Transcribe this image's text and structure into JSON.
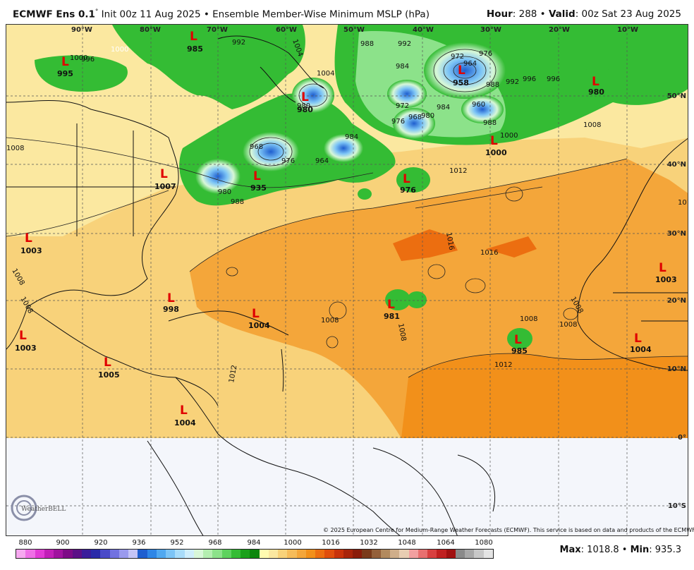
{
  "header": {
    "model": "ECMWF Ens 0.1",
    "degree": "°",
    "init": "Init 00z 11 Aug 2025",
    "bullet": "•",
    "product": "Ensemble Member-Wise Minimum MSLP (hPa)",
    "hour_label": "Hour",
    "hour_value": ": 288",
    "valid_label": "Valid",
    "valid_value": ": 00z Sat 23 Aug 2025"
  },
  "map": {
    "longitudes": [
      "90°W",
      "80°W",
      "70°W",
      "60°W",
      "50°W",
      "40°W",
      "30°W",
      "20°W",
      "10°W"
    ],
    "latitudes": [
      "50°N",
      "40°N",
      "30°N",
      "20°N",
      "10°N",
      "0°",
      "10°S"
    ],
    "lows": [
      {
        "symbol": "L",
        "value": "995"
      },
      {
        "symbol": "L",
        "value": "985"
      },
      {
        "symbol": "L",
        "value": "958"
      },
      {
        "symbol": "L",
        "value": "980"
      },
      {
        "symbol": "L",
        "value": "980"
      },
      {
        "symbol": "L",
        "value": "1000"
      },
      {
        "symbol": "L",
        "value": "1007"
      },
      {
        "symbol": "L",
        "value": "935"
      },
      {
        "symbol": "L",
        "value": "976"
      },
      {
        "symbol": "L",
        "value": "1003"
      },
      {
        "symbol": "L",
        "value": "1003"
      },
      {
        "symbol": "L",
        "value": "998"
      },
      {
        "symbol": "L",
        "value": "1004"
      },
      {
        "symbol": "L",
        "value": "981"
      },
      {
        "symbol": "L",
        "value": "985"
      },
      {
        "symbol": "L",
        "value": "1004"
      },
      {
        "symbol": "L",
        "value": "1003"
      },
      {
        "symbol": "L",
        "value": "1005"
      },
      {
        "symbol": "L",
        "value": "1004"
      }
    ],
    "isobar_labels": [
      "996",
      "1000",
      "992",
      "1004",
      "988",
      "992",
      "996",
      "1000",
      "1008",
      "1012",
      "1016",
      "1016",
      "1008",
      "1012",
      "1008",
      "1008",
      "1008",
      "1008",
      "972",
      "964",
      "976",
      "984",
      "988",
      "992",
      "996",
      "972",
      "960",
      "968",
      "976",
      "984",
      "988",
      "980",
      "1000",
      "1004",
      "1012",
      "968",
      "976",
      "984",
      "964",
      "980",
      "988",
      "980",
      "1008",
      "1008",
      "1008",
      "1012"
    ],
    "credit": "© 2025 European Centre for Medium-Range Weather Forecasts (ECMWF). This service is based on data and products of the ECMWF.",
    "logo_text": "WeatherBELL"
  },
  "colorbar": {
    "labels": [
      "880",
      "900",
      "920",
      "936",
      "952",
      "968",
      "984",
      "1000",
      "1016",
      "1032",
      "1048",
      "1064",
      "1080"
    ],
    "colors": [
      "#f7a8f0",
      "#ef6fe6",
      "#e23bd6",
      "#c21fb8",
      "#a0129e",
      "#7d0a86",
      "#5c0f86",
      "#3a1c9a",
      "#2a2aa8",
      "#4a4ac8",
      "#7272e0",
      "#9a9aee",
      "#c4c4f6",
      "#1e5ecf",
      "#2e86e6",
      "#50a8f0",
      "#7cc4f6",
      "#a8dcfa",
      "#cfeefc",
      "#d8f7d8",
      "#b4eeb0",
      "#8ce28a",
      "#5ed25e",
      "#34bc34",
      "#1aa01a",
      "#0c860c",
      "#fffbb0",
      "#fbe8a0",
      "#f8d27a",
      "#f6bc5a",
      "#f4a63a",
      "#f2901a",
      "#ec6e10",
      "#e04e0c",
      "#c8320a",
      "#a8240a",
      "#8a1c0a",
      "#7a3a1a",
      "#94603a",
      "#b28a5e",
      "#cfae8a",
      "#e8cdb2",
      "#f2a0a0",
      "#e87070",
      "#d84040",
      "#c02020",
      "#a01010",
      "#8a8a8a",
      "#a8a8a8",
      "#c8c8c8",
      "#e4e4e4"
    ]
  },
  "stats": {
    "max_label": "Max",
    "max_value": ": 1018.8",
    "bullet": "•",
    "min_label": "Min",
    "min_value": ": 935.3"
  }
}
